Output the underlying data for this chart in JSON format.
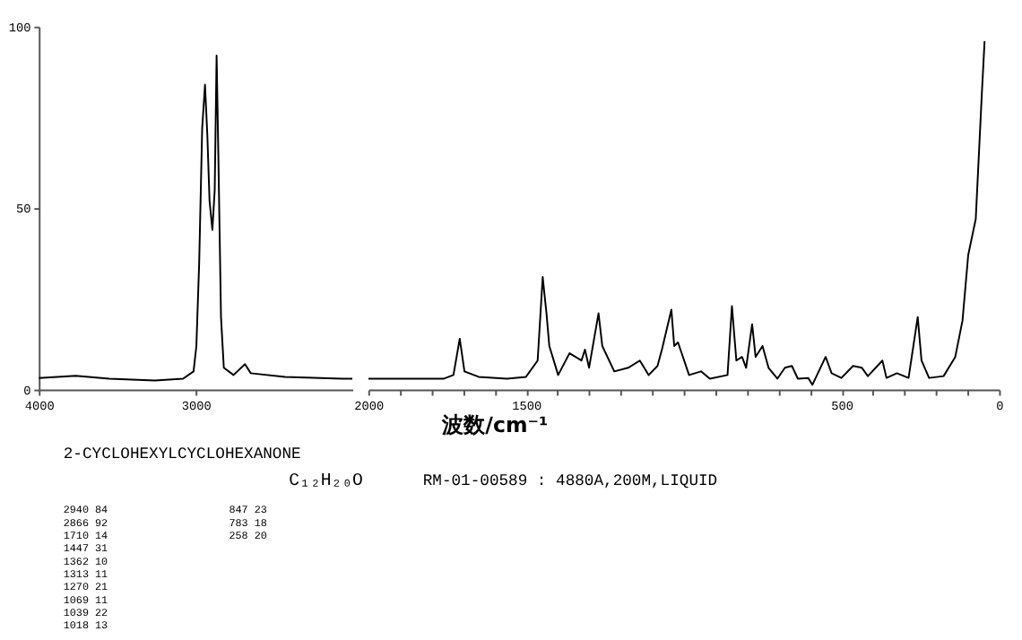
{
  "chart_data": [
    {
      "type": "line",
      "color": "#000000",
      "xlim": [
        4000,
        2000
      ],
      "xticks": [
        4000,
        3000
      ],
      "ylim": [
        0,
        100
      ],
      "yticks": [
        0,
        50,
        100
      ],
      "grid": false,
      "x": [
        4000,
        3765,
        3550,
        3260,
        3080,
        3013,
        2995,
        2977,
        2958,
        2940,
        2925,
        2911,
        2893,
        2878,
        2866,
        2855,
        2838,
        2820,
        2758,
        2685,
        2648,
        2430,
        2064,
        2000
      ],
      "values": [
        3.2,
        3.8,
        3.0,
        2.5,
        3.0,
        5,
        12,
        35,
        72,
        84,
        70,
        52,
        44,
        55,
        92,
        65,
        20,
        6,
        4,
        7,
        4.5,
        3.5,
        3.0,
        3.0
      ],
      "annotations": [
        "2-CYCLOHEXYLCYCLOHEXANONE",
        "C₁₂H₂₀O",
        "RM-01-00589 : 4880A,200M,LIQUID",
        "2940  84",
        "2866  92",
        "1710  14",
        "1447  31",
        "1362  10",
        "1313  11",
        "1270  21",
        "1069  11",
        "1039  22",
        "1018  13",
        "847  23",
        "783  18",
        "258  20"
      ]
    },
    {
      "type": "line",
      "color": "#000000",
      "xlim": [
        2000,
        0
      ],
      "xticks": [
        2000,
        {
          "value": 1900,
          "label": null
        },
        {
          "value": 1800,
          "label": null
        },
        {
          "value": 1700,
          "label": null
        },
        {
          "value": 1600,
          "label": null
        },
        1500,
        {
          "value": 1400,
          "label": null
        },
        {
          "value": 1300,
          "label": null
        },
        {
          "value": 1200,
          "label": null
        },
        {
          "value": 1100,
          "label": null
        },
        {
          "value": 1000,
          "label": null
        },
        {
          "value": 900,
          "label": null
        },
        {
          "value": 800,
          "label": null
        },
        {
          "value": 700,
          "label": null
        },
        {
          "value": 600,
          "label": null
        },
        500,
        {
          "value": 400,
          "label": null
        },
        {
          "value": 300,
          "label": null
        },
        {
          "value": 200,
          "label": null
        },
        {
          "value": 100,
          "label": null
        },
        0
      ],
      "ylim": [
        0,
        100
      ],
      "tick_labels": "x",
      "grid": false,
      "xlabel": "波数/cm⁻¹",
      "x": [
        2000,
        1760,
        1730,
        1710,
        1695,
        1650,
        1560,
        1500,
        1463,
        1447,
        1435,
        1426,
        1398,
        1362,
        1324,
        1313,
        1300,
        1270,
        1258,
        1220,
        1176,
        1139,
        1111,
        1083,
        1069,
        1039,
        1030,
        1018,
        983,
        945,
        917,
        861,
        847,
        833,
        815,
        802,
        783,
        772,
        750,
        731,
        703,
        679,
        657,
        638,
        605,
        592,
        550,
        531,
        500,
        463,
        435,
        416,
        370,
        357,
        324,
        287,
        258,
        246,
        222,
        176,
        139,
        116,
        98,
        74,
        55,
        46
      ],
      "values": [
        3,
        3,
        4,
        14,
        5,
        3.5,
        3,
        3.5,
        8,
        31,
        21,
        12,
        4,
        10,
        8,
        11,
        6,
        21,
        12,
        5,
        6,
        8,
        4,
        6.5,
        11,
        22,
        12,
        13,
        4,
        5,
        3,
        4,
        23,
        8,
        9,
        6,
        18,
        9,
        12,
        6,
        3,
        6,
        6.5,
        3,
        3.2,
        1.3,
        9,
        4.5,
        3.2,
        6.5,
        6,
        3.7,
        8,
        3.2,
        4.5,
        3.2,
        20,
        8,
        3.2,
        3.7,
        9,
        19,
        37,
        47,
        81,
        96
      ]
    }
  ]
}
